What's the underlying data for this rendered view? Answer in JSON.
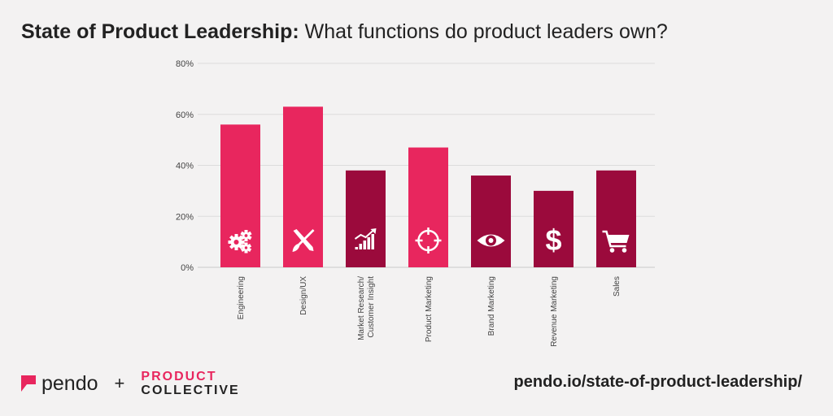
{
  "title": {
    "bold": "State of Product Leadership:",
    "rest": " What functions do product leaders own?"
  },
  "chart_data": {
    "type": "bar",
    "categories": [
      "Engineering",
      "Design/UX",
      "Market Research/\nCustomer Insight",
      "Product Marketing",
      "Brand Marketing",
      "Revenue Marketing",
      "Sales"
    ],
    "values": [
      56,
      63,
      38,
      47,
      36,
      30,
      38
    ],
    "ylim": [
      0,
      80
    ],
    "yticks": [
      "0%",
      "20%",
      "40%",
      "60%",
      "80%"
    ],
    "grid": true,
    "bar_colors": [
      "#e8265e",
      "#e8265e",
      "#9b0a3c",
      "#e8265e",
      "#9b0a3c",
      "#9b0a3c",
      "#9b0a3c"
    ],
    "bar_icons": [
      "gears-icon",
      "design-tools-icon",
      "growth-chart-icon",
      "target-icon",
      "eye-icon",
      "dollar-icon",
      "cart-icon"
    ]
  },
  "footer": {
    "pendo": "pendo",
    "plus": "+",
    "collective_line1": "PRODUCT",
    "collective_line2": "COLLECTIVE",
    "url": "pendo.io/state-of-product-leadership/"
  },
  "colors": {
    "accent": "#e8265e",
    "dark": "#9b0a3c",
    "background": "#f3f2f2"
  }
}
